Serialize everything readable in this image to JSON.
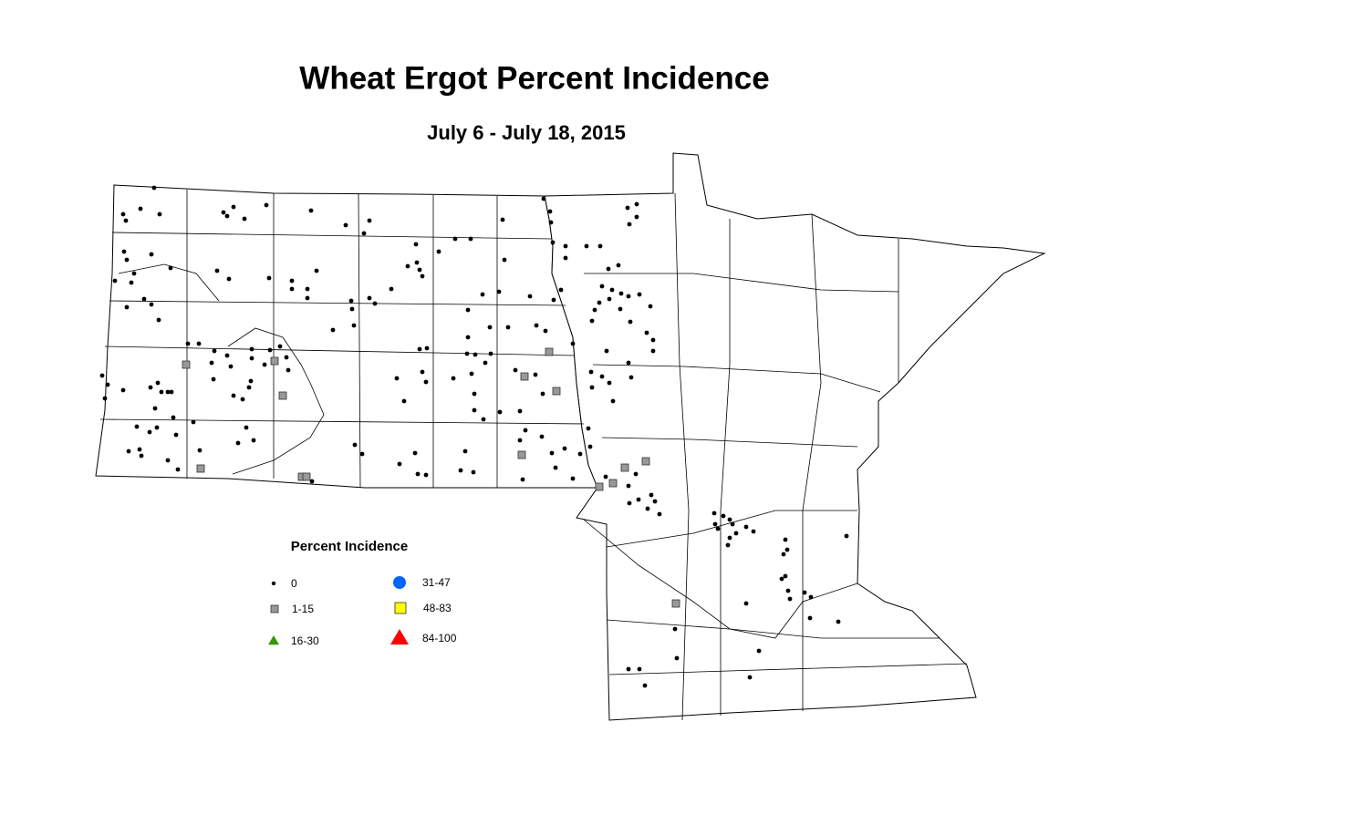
{
  "title": "Wheat Ergot Percent Incidence",
  "subtitle": "July 6 - July 18, 2015",
  "legend": {
    "title": "Percent Incidence",
    "items": [
      {
        "label": "0",
        "marker": "dot",
        "color": "#000000"
      },
      {
        "label": "1-15",
        "marker": "square",
        "color": "#999999"
      },
      {
        "label": "16-30",
        "marker": "triangle",
        "color": "#339900"
      },
      {
        "label": "31-47",
        "marker": "circle",
        "color": "#0066ff"
      },
      {
        "label": "48-83",
        "marker": "square",
        "color": "#ffff00"
      },
      {
        "label": "84-100",
        "marker": "triangle",
        "color": "#ff0000"
      }
    ]
  }
}
